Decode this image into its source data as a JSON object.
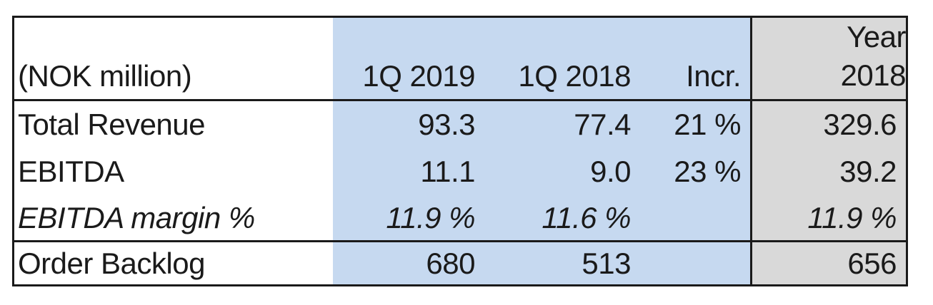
{
  "table": {
    "unit_label": "(NOK million)",
    "header": {
      "col_q1_2019": "1Q 2019",
      "col_q1_2018": "1Q 2018",
      "col_incr": "Incr.",
      "col_year_line1": "Year",
      "col_year_line2": "2018"
    },
    "rows": [
      {
        "label": "Total Revenue",
        "q1_2019": "93.3",
        "q1_2018": "77.4",
        "incr": "21 %",
        "year_2018": "329.6"
      },
      {
        "label": "EBITDA",
        "q1_2019": "11.1",
        "q1_2018": "9.0",
        "incr": "23 %",
        "year_2018": "39.2"
      },
      {
        "label": "EBITDA margin %",
        "q1_2019": "11.9 %",
        "q1_2018": "11.6 %",
        "incr": "",
        "year_2018": "11.9 %"
      },
      {
        "label": "Order Backlog",
        "q1_2019": "680",
        "q1_2018": "513",
        "incr": "",
        "year_2018": "656"
      }
    ],
    "colors": {
      "quarter_highlight": "#C6D9F0",
      "year_highlight": "#D9D9D9",
      "border": "#1a1a1a",
      "text": "#1a1a1a",
      "background": "#ffffff"
    }
  },
  "chart_data": {
    "type": "table",
    "title": "(NOK million)",
    "columns": [
      "(NOK million)",
      "1Q 2019",
      "1Q 2018",
      "Incr.",
      "Year 2018"
    ],
    "rows": [
      [
        "Total Revenue",
        93.3,
        77.4,
        "21 %",
        329.6
      ],
      [
        "EBITDA",
        11.1,
        9.0,
        "23 %",
        39.2
      ],
      [
        "EBITDA margin %",
        "11.9 %",
        "11.6 %",
        "",
        "11.9 %"
      ],
      [
        "Order Backlog",
        680,
        513,
        "",
        656
      ]
    ]
  }
}
